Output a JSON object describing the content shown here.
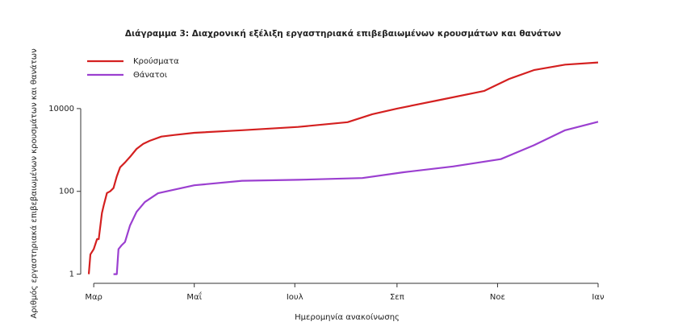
{
  "chart_data": {
    "type": "line",
    "title": "Διάγραμμα 3: Διαχρονική εξέλιξη εργαστηριακά επιβεβαιωμένων κρουσμάτων και θανάτων",
    "x_label": "Ημερομηνία ανακοίνωσης",
    "y_label": "Αριθμός εργαστηριακά επιβεβαιωμένων κρουσμάτων και θανάτων",
    "log_y": true,
    "legend": "top-left",
    "xlim": [
      -3,
      306
    ],
    "xticks": [
      {
        "value": 0,
        "label": "Μαρ"
      },
      {
        "value": 61,
        "label": "Μαΐ"
      },
      {
        "value": 122,
        "label": "Ιουλ"
      },
      {
        "value": 184,
        "label": "Σεπ"
      },
      {
        "value": 245,
        "label": "Νοε"
      },
      {
        "value": 306,
        "label": "Ιαν"
      }
    ],
    "ylim": [
      0.6,
      250000
    ],
    "yticks": [
      1,
      100,
      10000
    ],
    "series": [
      {
        "name": "Κρούσματα",
        "color": "#d42020",
        "x": [
          -3,
          -2,
          0,
          2,
          3,
          5,
          6,
          8,
          10,
          12,
          14,
          16,
          19,
          22,
          26,
          30,
          34,
          41,
          49,
          61,
          90,
          124,
          154,
          169,
          184,
          208,
          237,
          252,
          267,
          286,
          306
        ],
        "values": [
          1,
          3,
          4,
          7,
          7,
          30,
          45,
          91,
          100,
          120,
          230,
          380,
          500,
          680,
          1060,
          1400,
          1670,
          2100,
          2300,
          2600,
          3000,
          3600,
          4700,
          7300,
          10000,
          15600,
          26800,
          52000,
          85000,
          115000,
          130000
        ]
      },
      {
        "name": "Θάνατοι",
        "color": "#9b3fd0",
        "x": [
          12,
          14,
          15,
          17,
          19,
          22,
          26,
          31,
          39,
          49,
          61,
          90,
          124,
          163,
          188,
          218,
          247,
          267,
          286,
          306
        ],
        "values": [
          1,
          1,
          4,
          5,
          6,
          15,
          32,
          55,
          90,
          110,
          140,
          180,
          190,
          210,
          290,
          400,
          600,
          1300,
          3000,
          4800
        ]
      }
    ]
  }
}
